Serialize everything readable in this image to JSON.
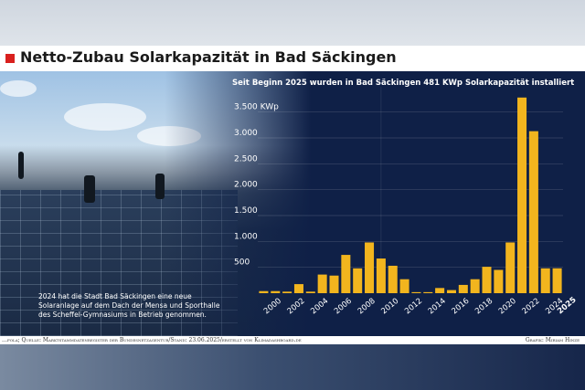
{
  "header": {
    "title": "Netto-Zubau Solarkapazität in Bad Säckingen"
  },
  "photo": {
    "caption": "2024 hat die Stadt Bad Säckingen eine neue Solaranlage auf dem Dach der Mensa und Sporthalle des Scheffel-Gymnasiums in Betrieb genommen."
  },
  "footer": {
    "source": "…fola; Quelle: Marktstammdatenregister der Bundesnetzagentur/Stand: 23.06.2025/erstellt von Klimadashboard.de",
    "credit": "Grafik: Miriam Hinze"
  },
  "colors": {
    "bar": "#f2b51e",
    "background": "#0f2047",
    "text": "#ffffff",
    "accent": "#d9201e"
  },
  "chart_data": {
    "type": "bar",
    "title": "Seit Beginn 2025 wurden in Bad Säckingen 481 KWp Solarkapazität installiert",
    "xlabel": "",
    "ylabel": "",
    "categories": [
      2000,
      2001,
      2002,
      2003,
      2004,
      2005,
      2006,
      2007,
      2008,
      2009,
      2010,
      2011,
      2012,
      2013,
      2014,
      2015,
      2016,
      2017,
      2018,
      2019,
      2020,
      2021,
      2022,
      2023,
      2024,
      2025
    ],
    "values": [
      40,
      40,
      30,
      175,
      30,
      360,
      340,
      740,
      480,
      980,
      670,
      530,
      270,
      20,
      20,
      100,
      60,
      160,
      270,
      510,
      450,
      980,
      3780,
      3130,
      480,
      481
    ],
    "x_tick_labels": [
      "2000",
      "2002",
      "2004",
      "2006",
      "2008",
      "2010",
      "2012",
      "2014",
      "2016",
      "2018",
      "2020",
      "2022",
      "2024",
      "2025"
    ],
    "x_tick_years": [
      2000,
      2002,
      2004,
      2006,
      2008,
      2010,
      2012,
      2014,
      2016,
      2018,
      2020,
      2022,
      2024,
      2025
    ],
    "y_ticks": [
      500,
      1000,
      1500,
      2000,
      2500,
      3000,
      3500
    ],
    "y_tick_labels": [
      "500",
      "1.000",
      "1.500",
      "2.000",
      "2.500",
      "3.000",
      "3.500 KWp"
    ],
    "ylim": [
      0,
      3900
    ],
    "highlight_last_tick": true,
    "grid": true
  }
}
